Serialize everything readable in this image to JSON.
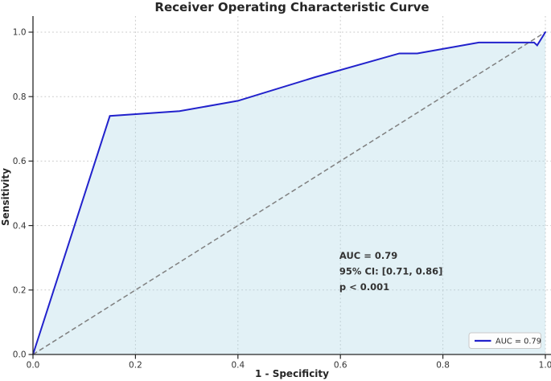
{
  "figure": {
    "title": "Receiver Operating Characteristic Curve"
  },
  "chart_data": {
    "type": "line",
    "title": "Receiver Operating Characteristic Curve",
    "xlabel": "1 - Specificity",
    "ylabel": "Sensitivity",
    "xlim": [
      0.0,
      1.0
    ],
    "ylim": [
      0.0,
      1.0
    ],
    "xticks": [
      0.0,
      0.2,
      0.4,
      0.6,
      0.8,
      1.0
    ],
    "yticks": [
      0.0,
      0.2,
      0.4,
      0.6,
      0.8,
      1.0
    ],
    "grid": true,
    "legend_position": "lower right",
    "series": [
      {
        "name": "roc-curve",
        "legend_label": "AUC = 0.79",
        "style": "solid",
        "color": "#2222cc",
        "fill_under": true,
        "fill_color": "rgba(173, 216, 230, 0.35)",
        "points": [
          [
            0.0,
            0.0
          ],
          [
            0.15,
            0.74
          ],
          [
            0.286,
            0.755
          ],
          [
            0.4,
            0.787
          ],
          [
            0.55,
            0.86
          ],
          [
            0.715,
            0.934
          ],
          [
            0.75,
            0.934
          ],
          [
            0.87,
            0.968
          ],
          [
            0.978,
            0.968
          ],
          [
            0.984,
            0.959
          ],
          [
            1.0,
            1.0
          ]
        ]
      },
      {
        "name": "chance-diagonal",
        "legend_label": "",
        "style": "dashed",
        "color": "#7f7f7f",
        "fill_under": false,
        "points": [
          [
            0.0,
            0.0
          ],
          [
            1.0,
            1.0
          ]
        ]
      }
    ],
    "annotations": [
      {
        "text": "AUC = 0.79",
        "x": 0.598,
        "y": 0.297
      },
      {
        "text": "95% CI: [0.71, 0.86]",
        "x": 0.598,
        "y": 0.248
      },
      {
        "text": "p < 0.001",
        "x": 0.598,
        "y": 0.2
      }
    ],
    "legend": {
      "label": "AUC = 0.79"
    },
    "style": {
      "roc_line": "#2222cc",
      "area_fill": "rgba(173, 216, 230, 0.35)",
      "diagonal": "#7f7f7f",
      "grid": "#c9c9c9",
      "spine": "#262626",
      "title_text": "#262626",
      "label_text": "#262626",
      "tick_text": "#333333",
      "annotation_text": "#333333",
      "legend_bg": "#fdfdfd",
      "legend_border": "#c9c9c9",
      "legend_text": "#2b2b2b"
    }
  }
}
